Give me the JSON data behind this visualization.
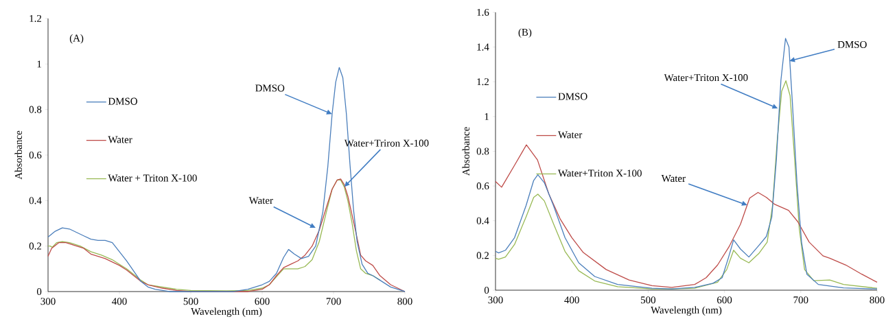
{
  "chart_data": [
    {
      "type": "line",
      "title": "(A)",
      "xlabel": "Wavelength (nm)",
      "ylabel": "Absorbance",
      "xlim": [
        300,
        800
      ],
      "ylim": [
        0,
        1.2
      ],
      "xticks": [
        300,
        400,
        500,
        600,
        700,
        800
      ],
      "yticks": [
        0,
        0.2,
        0.4,
        0.6,
        0.8,
        1,
        1.2
      ],
      "legend": "left",
      "grid": false,
      "series": [
        {
          "name": "DMSO",
          "color": "#4a7ebb",
          "x": [
            300,
            310,
            320,
            330,
            340,
            350,
            360,
            370,
            380,
            390,
            400,
            410,
            420,
            430,
            440,
            450,
            470,
            500,
            530,
            560,
            580,
            600,
            610,
            620,
            630,
            637,
            645,
            655,
            665,
            675,
            685,
            692,
            698,
            703,
            708,
            713,
            718,
            723,
            728,
            733,
            740,
            748,
            755,
            765,
            780,
            800
          ],
          "values": [
            0.24,
            0.265,
            0.28,
            0.275,
            0.26,
            0.245,
            0.23,
            0.225,
            0.225,
            0.215,
            0.175,
            0.135,
            0.09,
            0.045,
            0.02,
            0.01,
            0.0,
            0.0,
            0.0,
            0.0,
            0.01,
            0.03,
            0.045,
            0.08,
            0.15,
            0.185,
            0.165,
            0.145,
            0.155,
            0.2,
            0.35,
            0.55,
            0.78,
            0.92,
            0.985,
            0.94,
            0.78,
            0.56,
            0.36,
            0.22,
            0.12,
            0.08,
            0.07,
            0.05,
            0.02,
            0.0
          ]
        },
        {
          "name": "Water",
          "color": "#be4b48",
          "x": [
            300,
            305,
            315,
            325,
            340,
            350,
            360,
            370,
            380,
            390,
            400,
            410,
            420,
            430,
            440,
            460,
            480,
            500,
            520,
            550,
            580,
            600,
            610,
            620,
            630,
            640,
            650,
            660,
            670,
            680,
            690,
            698,
            705,
            710,
            715,
            720,
            725,
            732,
            738,
            745,
            755,
            765,
            780,
            800
          ],
          "values": [
            0.155,
            0.19,
            0.215,
            0.215,
            0.2,
            0.19,
            0.165,
            0.155,
            0.145,
            0.13,
            0.115,
            0.095,
            0.07,
            0.045,
            0.03,
            0.015,
            0.005,
            0.0,
            0.0,
            0.0,
            0.0,
            0.01,
            0.03,
            0.07,
            0.105,
            0.12,
            0.135,
            0.16,
            0.2,
            0.27,
            0.37,
            0.45,
            0.49,
            0.495,
            0.47,
            0.42,
            0.35,
            0.25,
            0.16,
            0.135,
            0.115,
            0.07,
            0.03,
            0.0
          ]
        },
        {
          "name": "Water + Triton X-100",
          "color": "#98b954",
          "x": [
            300,
            303,
            306,
            312,
            320,
            330,
            345,
            360,
            375,
            390,
            400,
            410,
            420,
            430,
            440,
            460,
            480,
            500,
            550,
            580,
            600,
            610,
            620,
            630,
            640,
            650,
            660,
            670,
            680,
            690,
            698,
            705,
            710,
            715,
            720,
            726,
            732,
            738,
            745,
            755,
            765
          ],
          "values": [
            0.2,
            0.2,
            0.195,
            0.215,
            0.22,
            0.215,
            0.2,
            0.175,
            0.16,
            0.14,
            0.12,
            0.1,
            0.075,
            0.05,
            0.03,
            0.02,
            0.01,
            0.005,
            0.003,
            0.005,
            0.015,
            0.03,
            0.065,
            0.1,
            0.1,
            0.1,
            0.11,
            0.14,
            0.22,
            0.35,
            0.45,
            0.49,
            0.49,
            0.46,
            0.4,
            0.3,
            0.18,
            0.1,
            0.08,
            0.07,
            0.05
          ]
        }
      ],
      "annotations": [
        {
          "text": "DMSO",
          "x": 698,
          "y": 0.78
        },
        {
          "text": "Water",
          "x": 675,
          "y": 0.28
        },
        {
          "text": "Water+Triron X-100",
          "x": 715,
          "y": 0.46
        }
      ]
    },
    {
      "type": "line",
      "title": "(B)",
      "xlabel": "Wavelength (nm)",
      "ylabel": "Absorbance",
      "xlim": [
        300,
        800
      ],
      "ylim": [
        0,
        1.6
      ],
      "xticks": [
        300,
        400,
        500,
        600,
        700,
        800
      ],
      "yticks": [
        0,
        0.2,
        0.4,
        0.6,
        0.8,
        1,
        1.2,
        1.4,
        1.6
      ],
      "legend": "left",
      "grid": false,
      "series": [
        {
          "name": "DMSO",
          "color": "#4a7ebb",
          "x": [
            300,
            304,
            313,
            325,
            340,
            350,
            355.5,
            364,
            376,
            391,
            409,
            430,
            460,
            505,
            531,
            561,
            585,
            597,
            605,
            612,
            621,
            632,
            645,
            655,
            662,
            668,
            674,
            680,
            684.5,
            689,
            695,
            701,
            708,
            723,
            756,
            800
          ],
          "values": [
            0.224,
            0.215,
            0.23,
            0.303,
            0.487,
            0.632,
            0.665,
            0.619,
            0.487,
            0.303,
            0.158,
            0.079,
            0.033,
            0.011,
            0.007,
            0.016,
            0.04,
            0.072,
            0.184,
            0.29,
            0.237,
            0.191,
            0.257,
            0.31,
            0.42,
            0.75,
            1.21,
            1.45,
            1.4,
            1.08,
            0.62,
            0.277,
            0.092,
            0.033,
            0.013,
            0.007
          ]
        },
        {
          "name": "Water",
          "color": "#be4b48",
          "x": [
            300,
            308,
            325,
            340.5,
            355,
            370,
            385,
            400,
            415,
            445,
            475,
            505,
            531,
            561,
            576,
            591,
            606,
            621,
            633,
            644,
            655,
            666,
            684,
            696,
            711,
            729,
            738,
            759,
            780,
            800
          ],
          "values": [
            0.626,
            0.593,
            0.72,
            0.837,
            0.75,
            0.553,
            0.408,
            0.303,
            0.217,
            0.119,
            0.059,
            0.026,
            0.016,
            0.033,
            0.072,
            0.145,
            0.25,
            0.38,
            0.53,
            0.563,
            0.534,
            0.494,
            0.46,
            0.395,
            0.277,
            0.198,
            0.184,
            0.145,
            0.092,
            0.046
          ]
        },
        {
          "name": "Water+Triton X-100",
          "color": "#98b954",
          "x": [
            300,
            304,
            313,
            325,
            340,
            350,
            355.5,
            364,
            376,
            391,
            409,
            430,
            460,
            505,
            531,
            561,
            591,
            603,
            612,
            621,
            632,
            645,
            656,
            663,
            669,
            675,
            680.5,
            686,
            692,
            698,
            705,
            717,
            738,
            756,
            800
          ],
          "values": [
            0.184,
            0.178,
            0.191,
            0.264,
            0.422,
            0.534,
            0.553,
            0.514,
            0.382,
            0.224,
            0.112,
            0.053,
            0.02,
            0.007,
            0.007,
            0.011,
            0.046,
            0.119,
            0.23,
            0.184,
            0.158,
            0.211,
            0.277,
            0.487,
            0.856,
            1.146,
            1.206,
            1.12,
            0.751,
            0.356,
            0.119,
            0.055,
            0.059,
            0.033,
            0.011
          ]
        }
      ],
      "annotations": [
        {
          "text": "DMSO",
          "x": 685,
          "y": 1.32
        },
        {
          "text": "Water+Triton X-100",
          "x": 670,
          "y": 1.047
        },
        {
          "text": "Water",
          "x": 630,
          "y": 0.49
        }
      ]
    }
  ]
}
